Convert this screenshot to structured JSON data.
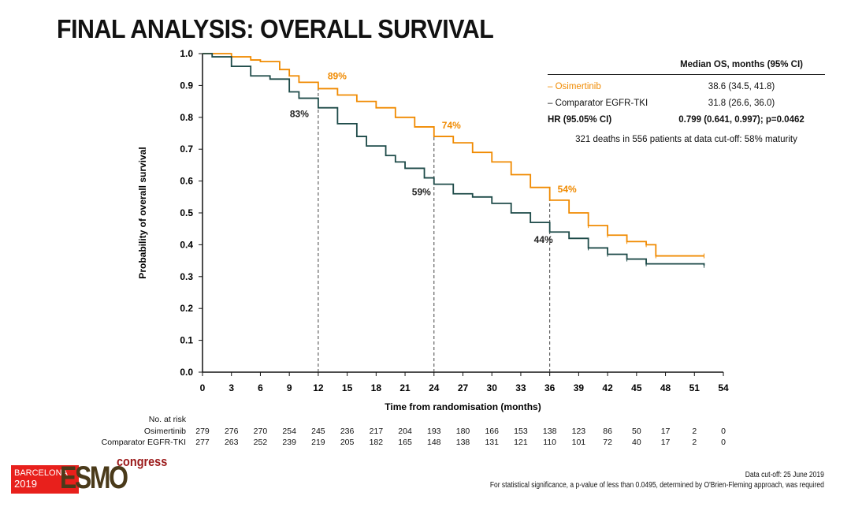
{
  "title": "FINAL ANALYSIS: OVERALL SURVIVAL",
  "chart_data": {
    "type": "line",
    "step": true,
    "xlabel": "Time from randomisation (months)",
    "ylabel": "Probability of overall survival",
    "xlim": [
      0,
      54
    ],
    "ylim": [
      0,
      1.0
    ],
    "xticks": [
      0,
      3,
      6,
      9,
      12,
      15,
      18,
      21,
      24,
      27,
      30,
      33,
      36,
      39,
      42,
      45,
      48,
      51,
      54
    ],
    "yticks": [
      "0.0",
      "0.1",
      "0.2",
      "0.3",
      "0.4",
      "0.5",
      "0.6",
      "0.7",
      "0.8",
      "0.9",
      "1.0"
    ],
    "grid": false,
    "series": [
      {
        "name": "Osimertinib",
        "color": "#f08a00",
        "x": [
          0,
          1,
          3,
          5,
          6,
          8,
          9,
          10,
          12,
          14,
          16,
          18,
          20,
          22,
          24,
          26,
          28,
          30,
          32,
          34,
          36,
          38,
          40,
          42,
          44,
          46,
          47,
          52
        ],
        "y": [
          1,
          1,
          0.99,
          0.98,
          0.975,
          0.95,
          0.93,
          0.91,
          0.89,
          0.87,
          0.85,
          0.83,
          0.8,
          0.77,
          0.74,
          0.72,
          0.69,
          0.66,
          0.62,
          0.58,
          0.54,
          0.5,
          0.46,
          0.43,
          0.41,
          0.4,
          0.365,
          0.365
        ]
      },
      {
        "name": "Comparator EGFR-TKI",
        "color": "#1d4a48",
        "x": [
          0,
          1,
          3,
          5,
          7,
          9,
          10,
          12,
          14,
          16,
          17,
          19,
          20,
          21,
          23,
          24,
          26,
          28,
          30,
          32,
          34,
          36,
          38,
          40,
          42,
          44,
          46,
          52
        ],
        "y": [
          1,
          0.99,
          0.96,
          0.93,
          0.92,
          0.88,
          0.86,
          0.83,
          0.78,
          0.74,
          0.71,
          0.68,
          0.66,
          0.64,
          0.61,
          0.59,
          0.56,
          0.55,
          0.53,
          0.5,
          0.47,
          0.44,
          0.42,
          0.39,
          0.37,
          0.355,
          0.34,
          0.335
        ]
      }
    ],
    "annotations": [
      {
        "x": 12,
        "osimertinib": "89%",
        "comparator": "83%"
      },
      {
        "x": 24,
        "osimertinib": "74%",
        "comparator": "59%"
      },
      {
        "x": 36,
        "osimertinib": "54%",
        "comparator": "44%"
      }
    ]
  },
  "legend": {
    "header": "Median OS, months (95% CI)",
    "rows": [
      {
        "label": "– Osimertinib",
        "value": "38.6 (34.5, 41.8)"
      },
      {
        "label": "– Comparator EGFR-TKI",
        "value": "31.8 (26.6, 36.0)"
      },
      {
        "label": "HR (95.05% CI)",
        "value": "0.799 (0.641, 0.997); p=0.0462"
      }
    ],
    "note": "321 deaths in 556 patients at data cut-off: 58% maturity"
  },
  "at_risk": {
    "title": "No. at risk",
    "rows": [
      {
        "label": "Osimertinib",
        "values": [
          "279",
          "276",
          "270",
          "254",
          "245",
          "236",
          "217",
          "204",
          "193",
          "180",
          "166",
          "153",
          "138",
          "123",
          "86",
          "50",
          "17",
          "2",
          "0"
        ]
      },
      {
        "label": "Comparator EGFR-TKI",
        "values": [
          "277",
          "263",
          "252",
          "239",
          "219",
          "205",
          "182",
          "165",
          "148",
          "138",
          "131",
          "121",
          "110",
          "101",
          "72",
          "40",
          "17",
          "2",
          "0"
        ]
      }
    ]
  },
  "logo": {
    "city": "BARCELONA",
    "year": "2019",
    "brand": "ESMO",
    "suffix": "congress"
  },
  "footer": {
    "line1": "Data cut-off: 25 June 2019",
    "line2": "For statistical significance, a p-value of less than 0.0495, determined by O'Brien-Fleming approach, was required"
  }
}
